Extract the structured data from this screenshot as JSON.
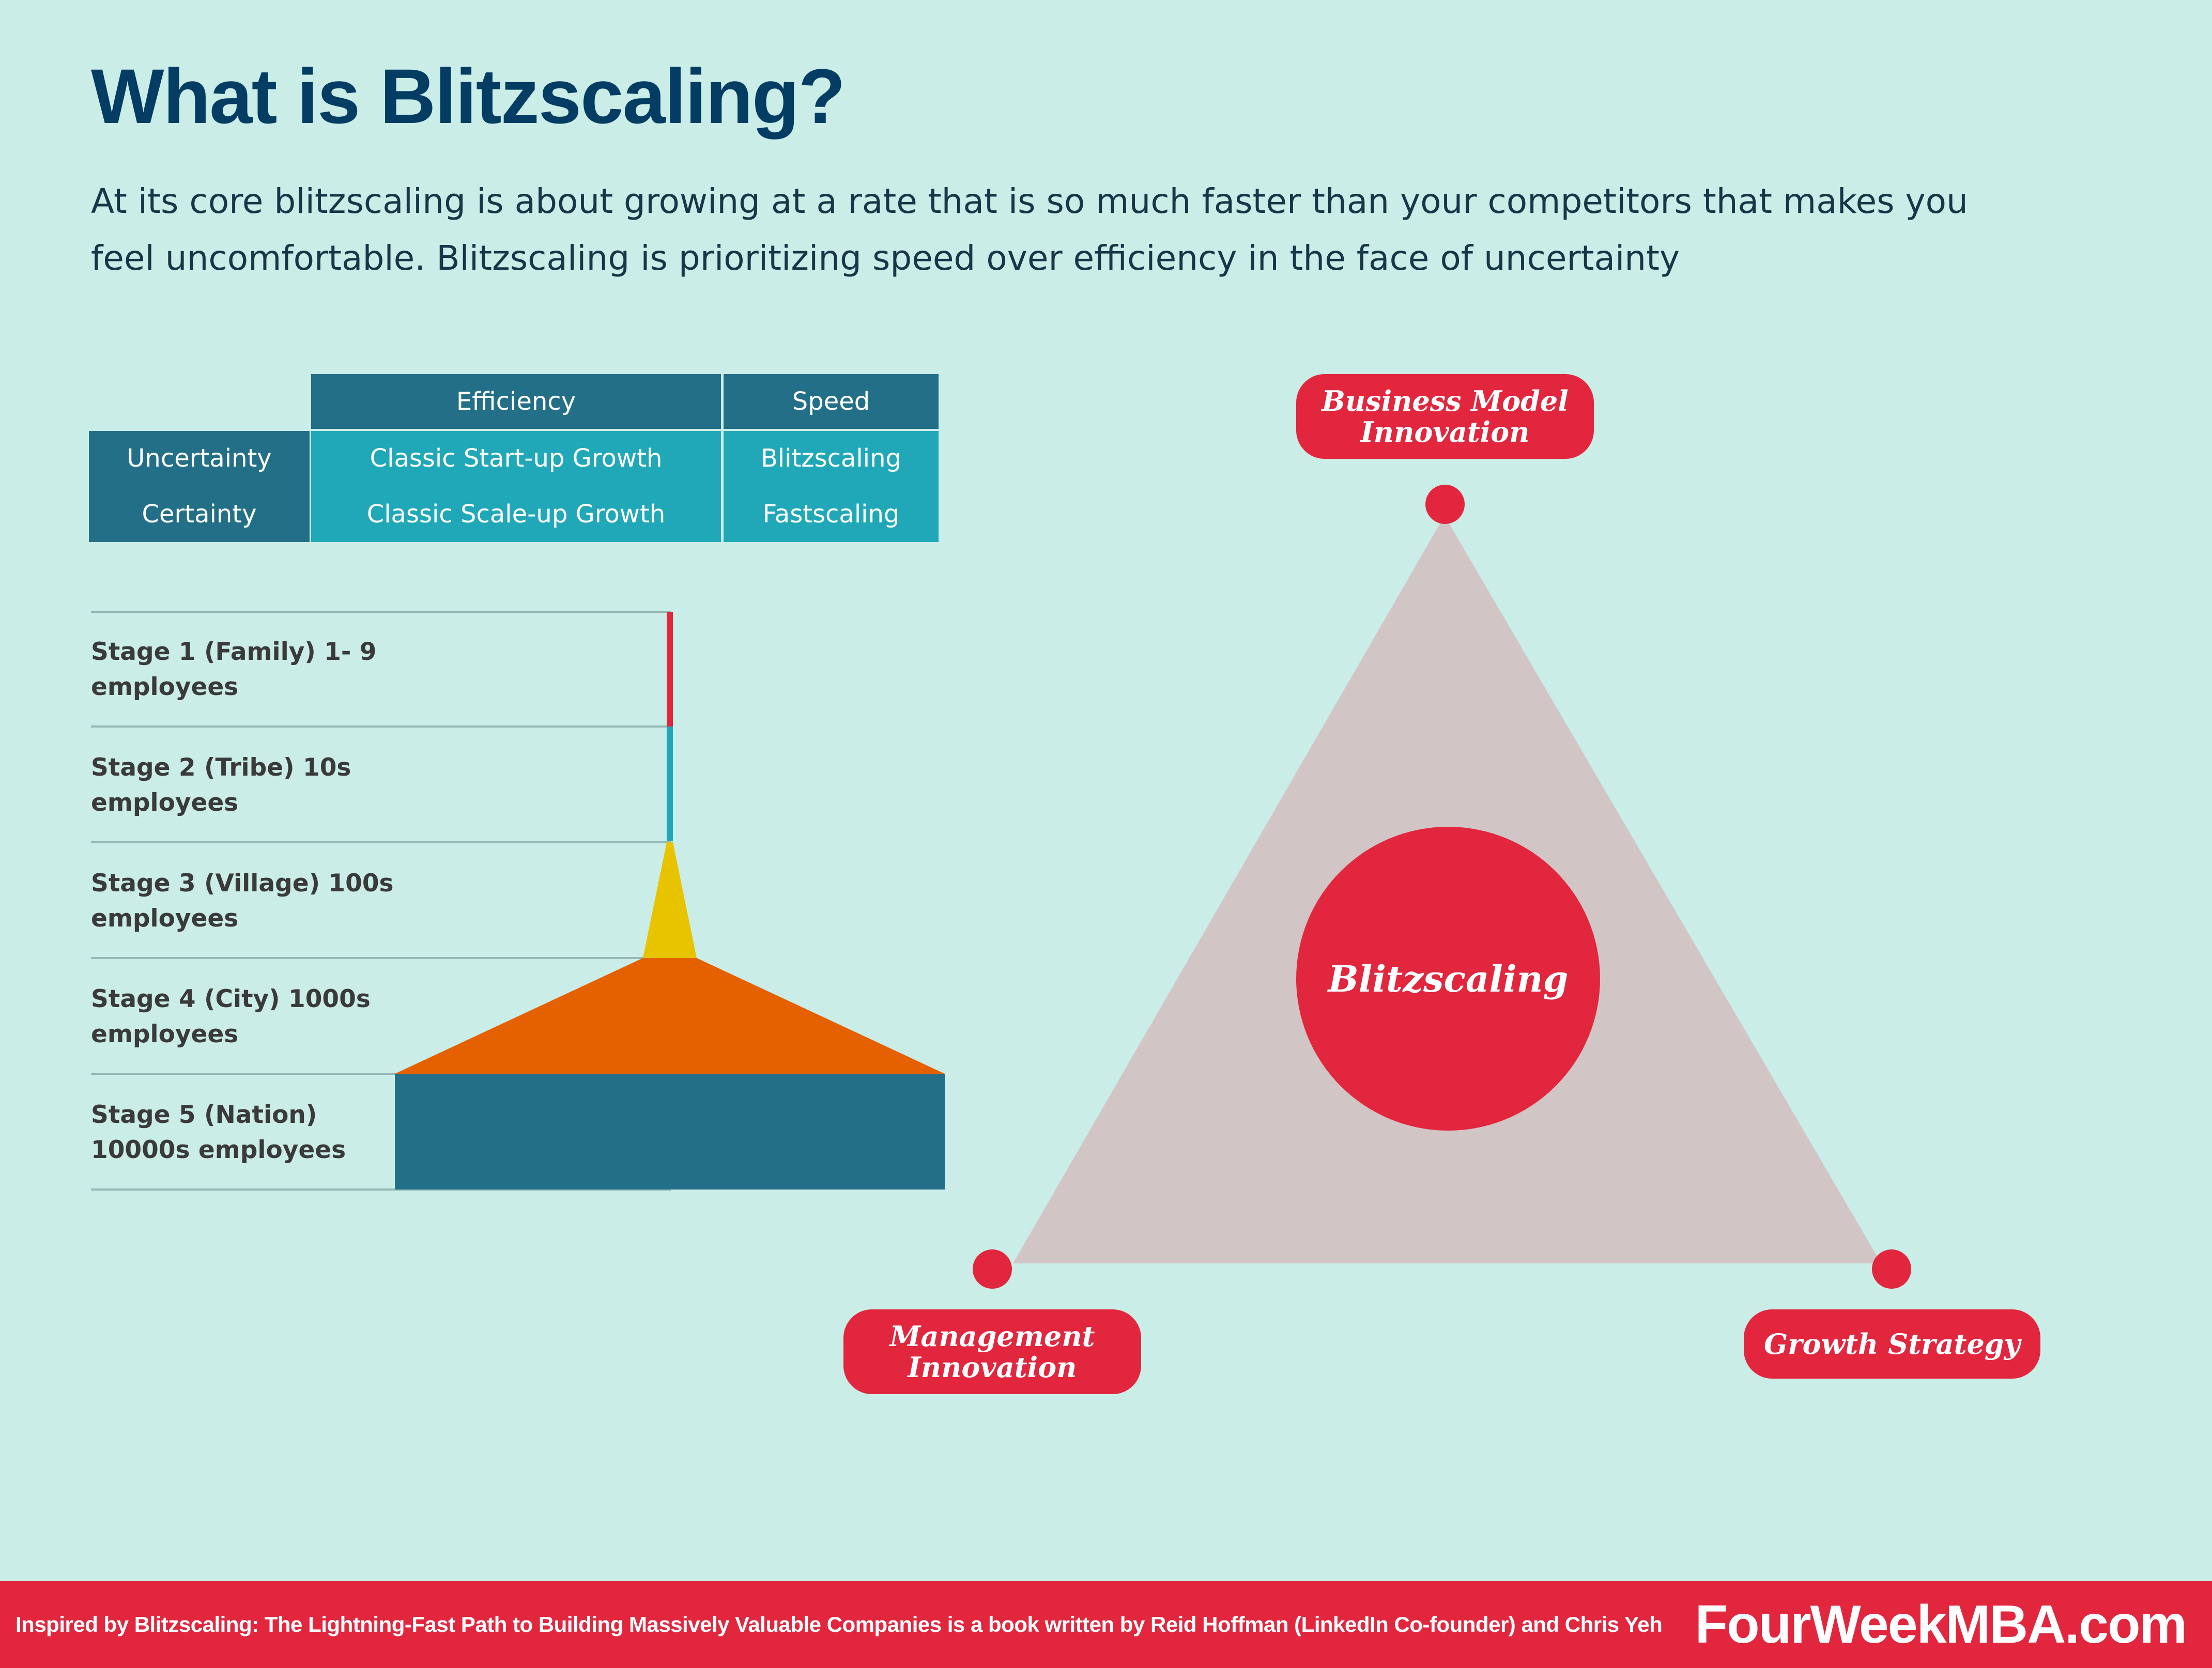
{
  "title": "What is Blitzscaling?",
  "intro": "At its core blitzscaling is about growing at a rate that is so much faster than your competitors that makes you feel uncomfortable. Blitzscaling is prioritizing speed over efficiency in the face of uncertainty",
  "matrix": {
    "col_headers": [
      "Efficiency",
      "Speed"
    ],
    "rows": [
      {
        "label": "Uncertainty",
        "efficiency": "Classic Start-up Growth",
        "speed": "Blitzscaling"
      },
      {
        "label": "Certainty",
        "efficiency": "Classic Scale-up Growth",
        "speed": "Fastscaling"
      }
    ]
  },
  "stages": [
    {
      "label": "Stage 1 (Family) 1- 9 employees",
      "color": "#e1263e"
    },
    {
      "label": "Stage 2 (Tribe) 10s employees",
      "color": "#21a8b8"
    },
    {
      "label": "Stage 3 (Village) 100s employees",
      "color": "#e8c400"
    },
    {
      "label": "Stage 4 (City) 1000s employees",
      "color": "#e56100"
    },
    {
      "label": "Stage 5 (Nation) 10000s employees",
      "color": "#236f87"
    }
  ],
  "triangle": {
    "center": "Blitzscaling",
    "top": "Business Model Innovation",
    "left": "Management Innovation",
    "right": "Growth Strategy",
    "fill": "#d1c5c5",
    "accent": "#e1263e"
  },
  "footer": {
    "text": "Inspired by Blitzscaling: The Lightning-Fast Path to Building Massively Valuable Companies is a book written by Reid Hoffman (LinkedIn Co-founder) and Chris Yeh",
    "brand": "FourWeekMBA.com"
  }
}
